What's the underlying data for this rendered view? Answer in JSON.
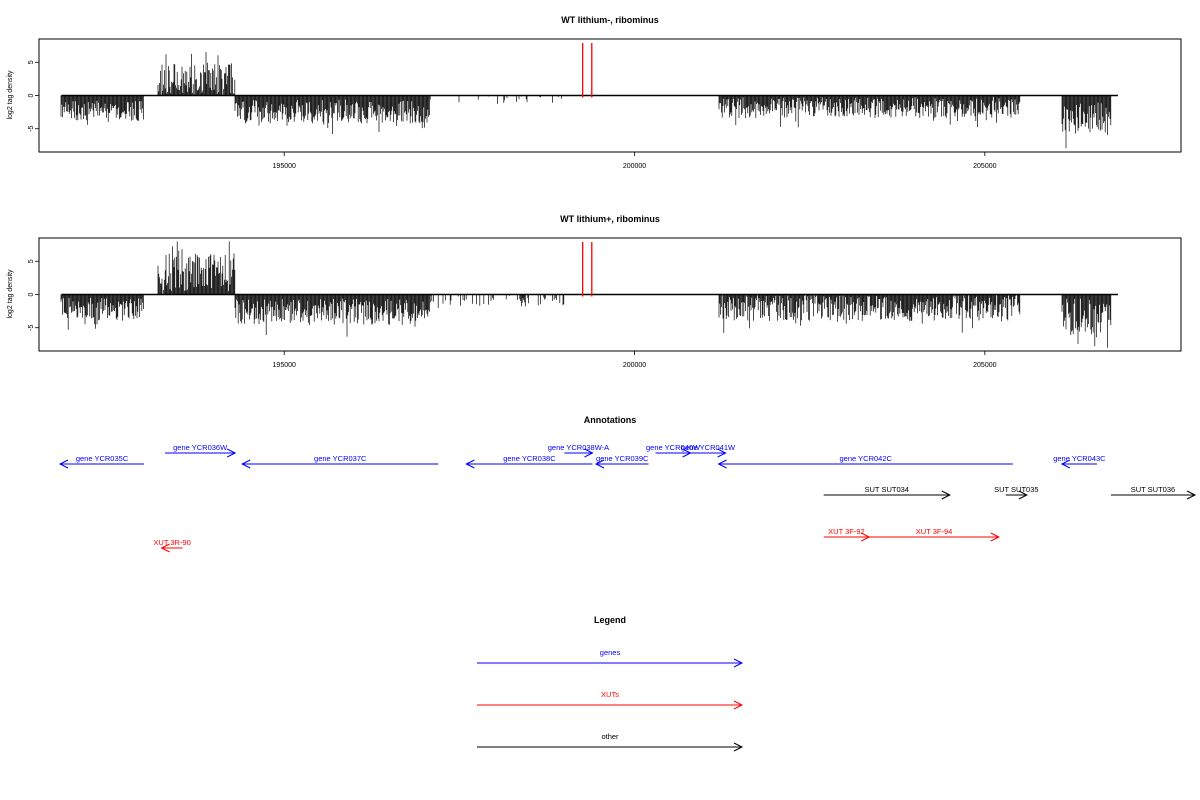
{
  "chart_data": [
    {
      "type": "bar",
      "title": "WT lithium-, ribominus",
      "ylabel": "log2 tag density",
      "xlabel": "",
      "xlim": [
        191500,
        207800
      ],
      "ylim": [
        -8.5,
        8.5
      ],
      "xticks": [
        195000,
        200000,
        205000
      ],
      "xtick_labels": [
        "195000",
        "200000",
        "205000"
      ],
      "yticks": [
        -5,
        0,
        5
      ],
      "ytick_labels": [
        "-5",
        "0",
        "5"
      ],
      "grid": false,
      "bar_color": "#000000",
      "marker_color": "#ff0000",
      "markers_x": [
        199260,
        199390
      ],
      "segments": [
        {
          "start": 191820,
          "end": 193000,
          "mean": -2.3,
          "amp": 1.5
        },
        {
          "start": 193200,
          "end": 194300,
          "mean": 2.5,
          "amp": 2.5
        },
        {
          "start": 194300,
          "end": 197100,
          "mean": -2.4,
          "amp": 1.8
        },
        {
          "start": 197500,
          "end": 199000,
          "mean": -0.7,
          "amp": 0.6,
          "density": 0.15
        },
        {
          "start": 201200,
          "end": 205500,
          "mean": -1.8,
          "amp": 1.6
        },
        {
          "start": 206100,
          "end": 206800,
          "mean": -3.5,
          "amp": 2.5
        }
      ]
    },
    {
      "type": "bar",
      "title": "WT lithium+, ribominus",
      "ylabel": "log2 tag density",
      "xlabel": "",
      "xlim": [
        191500,
        207800
      ],
      "ylim": [
        -8.5,
        8.5
      ],
      "xticks": [
        195000,
        200000,
        205000
      ],
      "xtick_labels": [
        "195000",
        "200000",
        "205000"
      ],
      "yticks": [
        -5,
        0,
        5
      ],
      "ytick_labels": [
        "-5",
        "0",
        "5"
      ],
      "grid": false,
      "bar_color": "#000000",
      "marker_color": "#ff0000",
      "markers_x": [
        199260,
        199390
      ],
      "segments": [
        {
          "start": 191820,
          "end": 193000,
          "mean": -2.2,
          "amp": 1.7
        },
        {
          "start": 193200,
          "end": 194300,
          "mean": 3.2,
          "amp": 3.2
        },
        {
          "start": 194300,
          "end": 197100,
          "mean": -2.6,
          "amp": 2.0
        },
        {
          "start": 197100,
          "end": 199000,
          "mean": -0.9,
          "amp": 0.9,
          "density": 0.35
        },
        {
          "start": 201200,
          "end": 205500,
          "mean": -2.0,
          "amp": 2.0
        },
        {
          "start": 206100,
          "end": 206800,
          "mean": -3.4,
          "amp": 2.8
        }
      ]
    }
  ],
  "annotations": {
    "title": "Annotations",
    "colors": {
      "gene": "#0000ff",
      "XUT": "#ff0000",
      "other": "#000000"
    },
    "features": [
      {
        "label": "gene YCR035C",
        "type": "gene",
        "start": 191800,
        "end": 193000,
        "strand": "-",
        "row": 1
      },
      {
        "label": "gene YCR036W",
        "type": "gene",
        "start": 193300,
        "end": 194300,
        "strand": "+",
        "row": 0
      },
      {
        "label": "gene YCR037C",
        "type": "gene",
        "start": 194400,
        "end": 197200,
        "strand": "-",
        "row": 1
      },
      {
        "label": "gene YCR038C",
        "type": "gene",
        "start": 197600,
        "end": 199400,
        "strand": "-",
        "row": 1
      },
      {
        "label": "gene YCR038W-A",
        "type": "gene",
        "start": 199000,
        "end": 199400,
        "strand": "+",
        "row": 0
      },
      {
        "label": "gene YCR039C",
        "type": "gene",
        "start": 199450,
        "end": 200200,
        "strand": "-",
        "row": 1
      },
      {
        "label": "gene YCR040W",
        "type": "gene",
        "start": 200300,
        "end": 200800,
        "strand": "+",
        "row": 0
      },
      {
        "label": "gene YCR041W",
        "type": "gene",
        "start": 200800,
        "end": 201300,
        "strand": "+",
        "row": 0
      },
      {
        "label": "gene YCR042C",
        "type": "gene",
        "start": 201200,
        "end": 205400,
        "strand": "-",
        "row": 1
      },
      {
        "label": "gene YCR043C",
        "type": "gene",
        "start": 206100,
        "end": 206600,
        "strand": "-",
        "row": 1
      },
      {
        "label": "SUT SUT034",
        "type": "other",
        "start": 202700,
        "end": 204500,
        "strand": "+",
        "row": 2
      },
      {
        "label": "SUT SUT035",
        "type": "other",
        "start": 205300,
        "end": 205600,
        "strand": "+",
        "row": 2
      },
      {
        "label": "SUT SUT036",
        "type": "other",
        "start": 206800,
        "end": 208000,
        "strand": "+",
        "row": 2
      },
      {
        "label": "XUT 3R-90",
        "type": "XUT",
        "start": 193250,
        "end": 193550,
        "strand": "-",
        "row": 3
      },
      {
        "label": "XUT 3F-92",
        "type": "XUT",
        "start": 202700,
        "end": 203350,
        "strand": "+",
        "row": 4
      },
      {
        "label": "XUT 3F-94",
        "type": "XUT",
        "start": 203350,
        "end": 205200,
        "strand": "+",
        "row": 4
      }
    ]
  },
  "legend": {
    "title": "Legend",
    "items": [
      {
        "label": "genes",
        "color": "#0000ff"
      },
      {
        "label": "XUTs",
        "color": "#ff0000"
      },
      {
        "label": "other",
        "color": "#000000"
      }
    ]
  }
}
